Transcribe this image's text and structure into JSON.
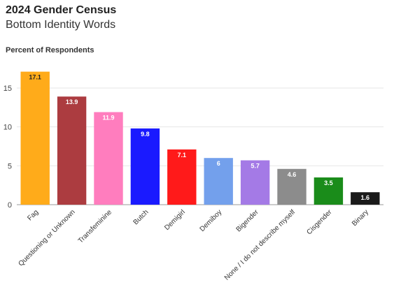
{
  "chart_data": {
    "type": "bar",
    "title": "2024 Gender Census",
    "subtitle": "Bottom Identity Words",
    "ylabel": "Percent of Respondents",
    "xlabel": "",
    "ylim": [
      0,
      18.5
    ],
    "yticks": [
      0,
      5,
      10,
      15
    ],
    "grid": true,
    "categories": [
      "Fag",
      "Questioning or Unknown",
      "Transfeminine",
      "Butch",
      "Demigirl",
      "Demiboy",
      "Bigender",
      "None / I do not describe myself",
      "Cisgender",
      "Binary"
    ],
    "values": [
      17.1,
      13.9,
      11.9,
      9.8,
      7.1,
      6,
      5.7,
      4.6,
      3.5,
      1.6
    ],
    "colors": [
      "#ffab1a",
      "#ac3c40",
      "#ff7dbe",
      "#1a1aff",
      "#ff1a1a",
      "#73a0ec",
      "#a47ae6",
      "#8c8c8c",
      "#1a8c1a",
      "#1a1a1a"
    ],
    "label_colors": [
      "#222222",
      "#ffffff",
      "#ffffff",
      "#ffffff",
      "#ffffff",
      "#ffffff",
      "#ffffff",
      "#ffffff",
      "#ffffff",
      "#ffffff"
    ]
  }
}
